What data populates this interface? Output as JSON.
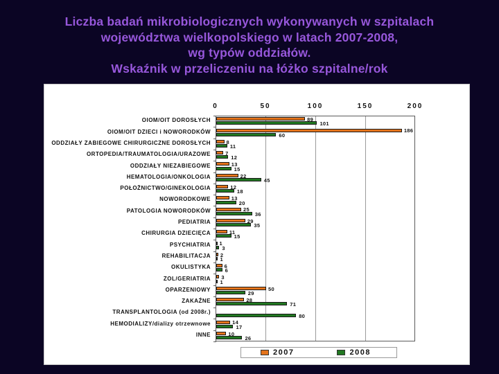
{
  "slide": {
    "background_color": "#0B0524",
    "title_color": "#9757DB",
    "title_lines": [
      "Liczba badań mikrobiologicznych wykonywanych w szpitalach",
      "województwa wielkopolskiego w latach 2007-2008,",
      "wg typów oddziałów.",
      "Wskaźnik w przeliczeniu na łóżko szpitalne/rok"
    ]
  },
  "chart_data": {
    "type": "bar",
    "orientation": "horizontal",
    "title": "",
    "xlabel": "",
    "ylabel": "",
    "categories": [
      "OIOM/OIT DOROSŁYCH",
      "OIOM/OIT DZIECI i NOWORODKÓW",
      "ODDZIAŁY ZABIEGOWE CHIRURGICZNE DOROSŁYCH",
      "ORTOPEDIA/TRAUMATOLOGIA/URAZOWE",
      "ODDZIAŁY NIEZABIEGOWE",
      "HEMATOLOGIA/ONKOLOGIA",
      "POŁOŻNICTWO/GINEKOLOGIA",
      "NOWORODKOWE",
      "PATOLOGIA NOWORODKÓW",
      "PEDIATRIA",
      "CHIRURGIA DZIECIĘCA",
      "PSYCHIATRIA",
      "REHABILITACJA",
      "OKULISTYKA",
      "ZOL/GERIATRIA",
      "OPARZENIOWY",
      "ZAKAŹNE",
      "TRANSPLANTOLOGIA (od 2008r.)",
      "HEMODIALIZY/dializy otrzewnowe",
      "INNE"
    ],
    "series": [
      {
        "name": "2007",
        "color": "#E3731B",
        "values": [
          89,
          186,
          8,
          7,
          13,
          22,
          12,
          13,
          25,
          29,
          11,
          1,
          2,
          6,
          3,
          50,
          28,
          null,
          14,
          10
        ]
      },
      {
        "name": "2008",
        "color": "#217821",
        "values": [
          101,
          60,
          11,
          12,
          15,
          45,
          18,
          20,
          36,
          35,
          15,
          3,
          1,
          6,
          1,
          29,
          71,
          80,
          17,
          26
        ]
      }
    ],
    "xlim": [
      0,
      200
    ],
    "x_ticks": [
      0,
      50,
      100,
      150,
      200
    ],
    "grid": true,
    "legend_position": "bottom"
  }
}
